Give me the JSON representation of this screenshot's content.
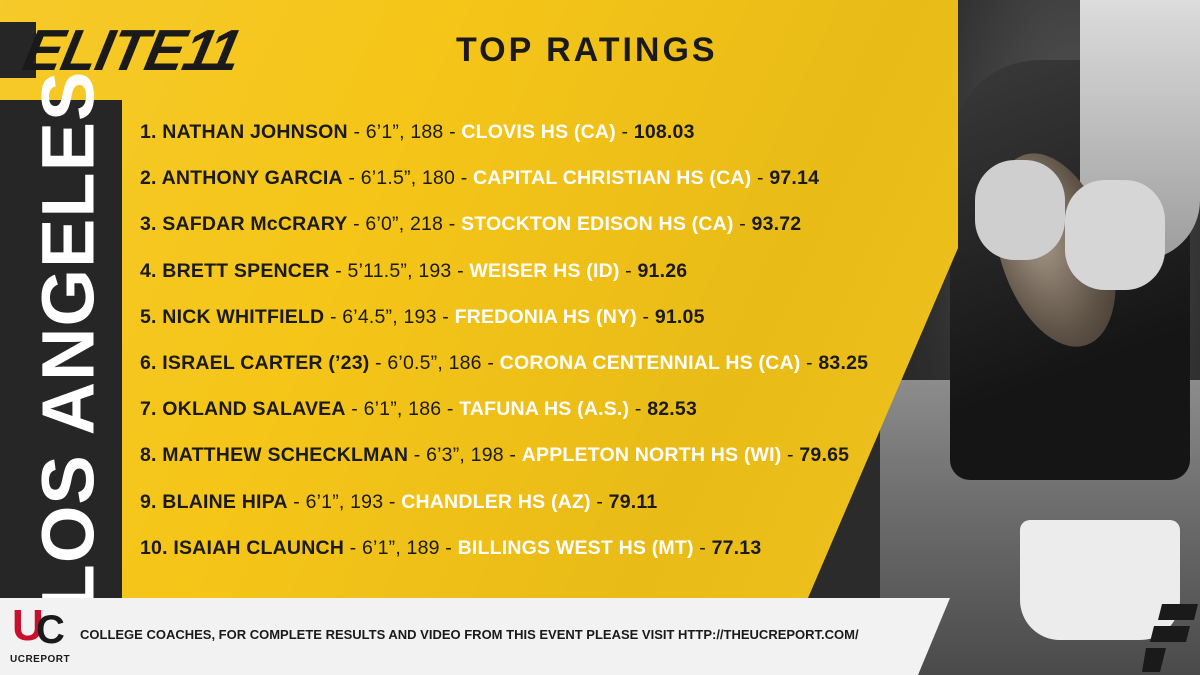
{
  "header": {
    "logo_text": "ELITE",
    "logo_number": "11",
    "subtitle": "TOP RATINGS"
  },
  "city": "LOS ANGELES",
  "rankings": [
    {
      "rank": "1.",
      "name": "NATHAN JOHNSON",
      "stats": "6’1”, 188",
      "school": "CLOVIS HS (CA)",
      "score": "108.03"
    },
    {
      "rank": "2.",
      "name": "ANTHONY GARCIA",
      "stats": "6’1.5”, 180",
      "school": "CAPITAL CHRISTIAN HS (CA)",
      "score": "97.14"
    },
    {
      "rank": "3.",
      "name": "SAFDAR McCRARY",
      "stats": "6’0”, 218",
      "school": "STOCKTON EDISON HS (CA)",
      "score": "93.72"
    },
    {
      "rank": "4.",
      "name": "BRETT SPENCER",
      "stats": "5’11.5”, 193",
      "school": "WEISER HS (ID)",
      "score": "91.26"
    },
    {
      "rank": "5.",
      "name": "NICK WHITFIELD",
      "stats": "6’4.5”, 193",
      "school": "FREDONIA HS (NY)",
      "score": "91.05"
    },
    {
      "rank": "6.",
      "name": "ISRAEL CARTER (’23)",
      "stats": "6’0.5”, 186",
      "school": "CORONA CENTENNIAL HS (CA)",
      "score": "83.25"
    },
    {
      "rank": "7.",
      "name": "OKLAND SALAVEA",
      "stats": "6’1”, 186",
      "school": "TAFUNA HS (A.S.)",
      "score": "82.53"
    },
    {
      "rank": "8.",
      "name": "MATTHEW SCHECKLMAN",
      "stats": "6’3”, 198",
      "school": "APPLETON NORTH HS (WI)",
      "score": "79.65"
    },
    {
      "rank": "9.",
      "name": "BLAINE HIPA",
      "stats": "6’1”, 193",
      "school": "CHANDLER HS (AZ)",
      "score": "79.11"
    },
    {
      "rank": "10.",
      "name": "ISAIAH CLAUNCH",
      "stats": "6’1”, 189",
      "school": "BILLINGS WEST HS (MT)",
      "score": "77.13"
    }
  ],
  "footer": {
    "brand_u": "U",
    "brand_c": "C",
    "brand_word": "UCREPORT",
    "message": "COLLEGE COACHES, FOR COMPLETE RESULTS AND VIDEO FROM THIS EVENT PLEASE VISIT HTTP://THEUCREPORT.COM/"
  },
  "separator": " - ",
  "colors": {
    "accent_yellow": "#f5c518",
    "dark": "#262626",
    "school_text": "#ffffff",
    "brand_red": "#c8102e"
  }
}
